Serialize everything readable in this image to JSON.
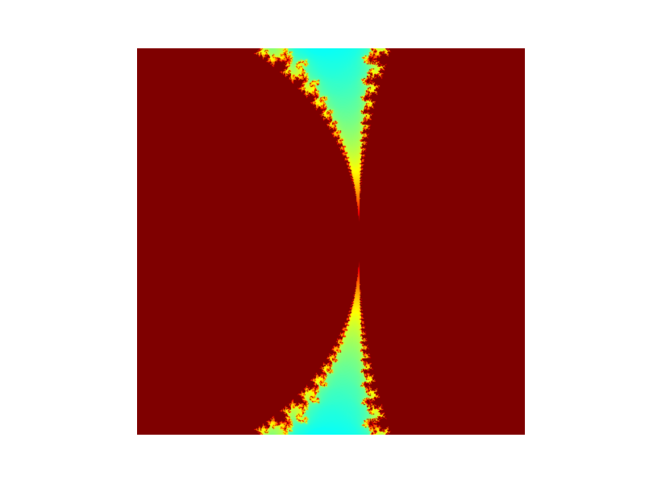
{
  "image": {
    "subject": "fractal-image",
    "colormap": {
      "name": "jet",
      "stops": [
        "#00007f",
        "#0000ff",
        "#007fff",
        "#00ffff",
        "#7fff7f",
        "#ffff00",
        "#ff7f00",
        "#ff0000",
        "#7f0000"
      ],
      "interior": "#7f0000"
    },
    "background": "#ffffff"
  }
}
